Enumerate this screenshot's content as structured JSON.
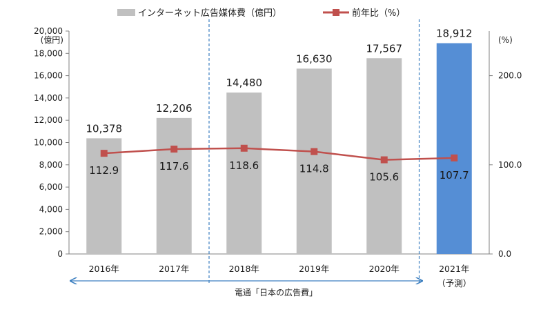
{
  "chart_data": {
    "type": "bar",
    "categories": [
      "2016年",
      "2017年",
      "2018年",
      "2019年",
      "2020年",
      "2021年"
    ],
    "forecast_note": "（予測）",
    "series": [
      {
        "name": "インターネット広告媒体費（億円）",
        "kind": "bar",
        "axis": "left",
        "values": [
          10378,
          12206,
          14480,
          16630,
          17567,
          18912
        ],
        "labels": [
          "10,378",
          "12,206",
          "14,480",
          "16,630",
          "17,567",
          "18,912"
        ],
        "color": "#c0c0c0",
        "highlight_color": "#558ed5",
        "highlight_index": 5
      },
      {
        "name": "前年比（%）",
        "kind": "line",
        "axis": "right",
        "values": [
          112.9,
          117.6,
          118.6,
          114.8,
          105.6,
          107.7
        ],
        "labels": [
          "112.9",
          "117.6",
          "118.6",
          "114.8",
          "105.6",
          "107.7"
        ],
        "color": "#c0504d"
      }
    ],
    "y_left": {
      "unit": "(億円)",
      "range": [
        0,
        20000
      ],
      "ticks": [
        "0",
        "2,000",
        "4,000",
        "6,000",
        "8,000",
        "10,000",
        "12,000",
        "14,000",
        "16,000",
        "18,000",
        "20,000"
      ]
    },
    "y_right": {
      "unit": "(%)",
      "range": [
        0,
        250
      ],
      "tick_values": [
        0,
        100,
        200
      ],
      "ticks": [
        "0.0",
        "100.0",
        "200.0"
      ]
    },
    "grid": false,
    "legend_position": "top",
    "annotation": {
      "text": "電通「日本の広告費」",
      "spans": "2016年–2020年"
    },
    "separator_color": "#3c7fc0"
  }
}
